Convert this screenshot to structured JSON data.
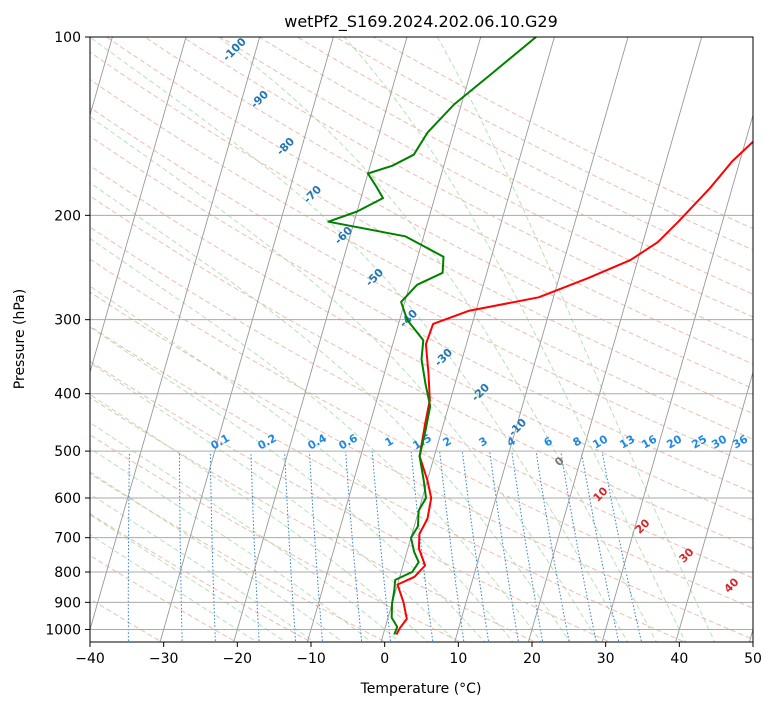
{
  "chart_data": {
    "type": "line",
    "title": "wetPf2_S169.2024.202.06.10.G29",
    "xlabel": "Temperature (°C)",
    "ylabel": "Pressure (hPa)",
    "xlim": [
      -40,
      50
    ],
    "ylim": [
      1050,
      100
    ],
    "yscale": "log",
    "grid": true,
    "xticks": [
      "−40",
      "−30",
      "−20",
      "−10",
      "0",
      "10",
      "20",
      "30",
      "40",
      "50"
    ],
    "yticks": [
      {
        "p": 100,
        "label": "100"
      },
      {
        "p": 200,
        "label": "200"
      },
      {
        "p": 300,
        "label": "300"
      },
      {
        "p": 400,
        "label": "400"
      },
      {
        "p": 500,
        "label": "500"
      },
      {
        "p": 600,
        "label": "600"
      },
      {
        "p": 700,
        "label": "700"
      },
      {
        "p": 800,
        "label": "800"
      },
      {
        "p": 900,
        "label": "900"
      },
      {
        "p": 1000,
        "label": "1000"
      }
    ],
    "series": [
      {
        "color": "#ff0000",
        "points": [
          [
            1.8,
            1020
          ],
          [
            2.0,
            995
          ],
          [
            2.6,
            960
          ],
          [
            1.5,
            900
          ],
          [
            0.0,
            840
          ],
          [
            2.0,
            815
          ],
          [
            3.0,
            780
          ],
          [
            1.5,
            730
          ],
          [
            1.0,
            690
          ],
          [
            1.5,
            650
          ],
          [
            1.2,
            600
          ],
          [
            0.0,
            560
          ],
          [
            -2.0,
            510
          ],
          [
            -2.5,
            450
          ],
          [
            -2.8,
            410
          ],
          [
            -4.0,
            370
          ],
          [
            -5.5,
            330
          ],
          [
            -5.3,
            305
          ],
          [
            -1.0,
            290
          ],
          [
            8.0,
            275
          ],
          [
            14.0,
            255
          ],
          [
            19.0,
            238
          ],
          [
            22.0,
            222
          ],
          [
            24.0,
            205
          ],
          [
            27.0,
            180
          ],
          [
            29.0,
            162
          ],
          [
            32.0,
            145
          ],
          [
            36.0,
            128
          ],
          [
            40.0,
            112
          ],
          [
            42.0,
            102
          ]
        ]
      },
      {
        "color": "#008000",
        "points": [
          [
            1.5,
            1020
          ],
          [
            1.6,
            990
          ],
          [
            0.5,
            955
          ],
          [
            0.0,
            905
          ],
          [
            -0.2,
            860
          ],
          [
            -0.5,
            825
          ],
          [
            1.5,
            800
          ],
          [
            2.0,
            770
          ],
          [
            1.0,
            740
          ],
          [
            0.0,
            700
          ],
          [
            0.5,
            670
          ],
          [
            0.0,
            630
          ],
          [
            0.5,
            600
          ],
          [
            -0.5,
            560
          ],
          [
            -2.0,
            510
          ],
          [
            -2.2,
            460
          ],
          [
            -2.5,
            420
          ],
          [
            -4.0,
            385
          ],
          [
            -5.5,
            350
          ],
          [
            -6.0,
            325
          ],
          [
            -9.0,
            300
          ],
          [
            -10.5,
            280
          ],
          [
            -9.0,
            262
          ],
          [
            -6.0,
            250
          ],
          [
            -6.5,
            235
          ],
          [
            -12.5,
            217
          ],
          [
            -23.5,
            205
          ],
          [
            -20.0,
            197
          ],
          [
            -17.0,
            187
          ],
          [
            -18.5,
            178
          ],
          [
            -20.0,
            170
          ],
          [
            -17.0,
            165
          ],
          [
            -14.5,
            158
          ],
          [
            -13.5,
            145
          ],
          [
            -11.0,
            130
          ],
          [
            -7.0,
            115
          ],
          [
            -2.5,
            100
          ]
        ]
      }
    ],
    "dry_adiabat_labels": [
      "-100",
      "-90",
      "-80",
      "-70",
      "-60",
      "-50",
      "-40",
      "-30",
      "-20",
      "-10"
    ],
    "moist_adiabat_labels": [
      "0",
      "10",
      "20",
      "30",
      "40"
    ],
    "mixing_ratio_labels": [
      "0.1",
      "0.2",
      "0.4",
      "0.6",
      "1",
      "1.5",
      "2",
      "3",
      "4",
      "6",
      "8",
      "10",
      "13",
      "16",
      "20",
      "25",
      "30",
      "36"
    ]
  }
}
